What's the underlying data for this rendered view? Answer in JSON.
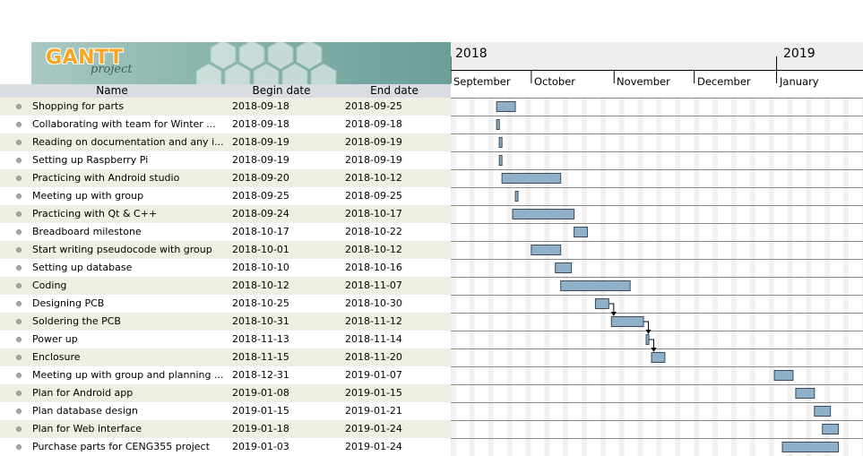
{
  "logo": {
    "title": "GANTT",
    "subtitle": "project"
  },
  "columns": {
    "name": "Name",
    "begin": "Begin date",
    "end": "End date"
  },
  "timeline": {
    "years": [
      "2018",
      "2019"
    ],
    "months": [
      "September",
      "October",
      "November",
      "December",
      "January"
    ]
  },
  "colors": {
    "bar_fill": "#8eb0c8",
    "bar_stroke": "#3a4a5a",
    "row_alt": "#eeeee2",
    "header_bg": "#d9dde2"
  },
  "tasks": [
    {
      "name": "Shopping for parts",
      "begin": "2018-09-18",
      "end": "2018-09-25"
    },
    {
      "name": "Collaborating with team for Winter ...",
      "begin": "2018-09-18",
      "end": "2018-09-18"
    },
    {
      "name": "Reading on documentation and any i...",
      "begin": "2018-09-19",
      "end": "2018-09-19"
    },
    {
      "name": "Setting up Raspberry Pi",
      "begin": "2018-09-19",
      "end": "2018-09-19"
    },
    {
      "name": "Practicing with Android studio",
      "begin": "2018-09-20",
      "end": "2018-10-12"
    },
    {
      "name": "Meeting up with group",
      "begin": "2018-09-25",
      "end": "2018-09-25"
    },
    {
      "name": "Practicing with Qt & C++",
      "begin": "2018-09-24",
      "end": "2018-10-17"
    },
    {
      "name": "Breadboard milestone",
      "begin": "2018-10-17",
      "end": "2018-10-22"
    },
    {
      "name": "Start writing pseudocode with group",
      "begin": "2018-10-01",
      "end": "2018-10-12"
    },
    {
      "name": "Setting up database",
      "begin": "2018-10-10",
      "end": "2018-10-16"
    },
    {
      "name": "Coding",
      "begin": "2018-10-12",
      "end": "2018-11-07"
    },
    {
      "name": "Designing PCB",
      "begin": "2018-10-25",
      "end": "2018-10-30"
    },
    {
      "name": "Soldering the PCB",
      "begin": "2018-10-31",
      "end": "2018-11-12"
    },
    {
      "name": "Power up",
      "begin": "2018-11-13",
      "end": "2018-11-14"
    },
    {
      "name": "Enclosure",
      "begin": "2018-11-15",
      "end": "2018-11-20"
    },
    {
      "name": "Meeting up with group and planning ...",
      "begin": "2018-12-31",
      "end": "2019-01-07"
    },
    {
      "name": "Plan for Android app",
      "begin": "2019-01-08",
      "end": "2019-01-15"
    },
    {
      "name": "Plan database design",
      "begin": "2019-01-15",
      "end": "2019-01-21"
    },
    {
      "name": "Plan for Web interface",
      "begin": "2019-01-18",
      "end": "2019-01-24"
    },
    {
      "name": "Purchase parts for CENG355 project",
      "begin": "2019-01-03",
      "end": "2019-01-24"
    }
  ],
  "dependencies": [
    {
      "from": "Designing PCB",
      "to": "Soldering the PCB"
    },
    {
      "from": "Soldering the PCB",
      "to": "Power up"
    },
    {
      "from": "Power up",
      "to": "Enclosure"
    }
  ]
}
